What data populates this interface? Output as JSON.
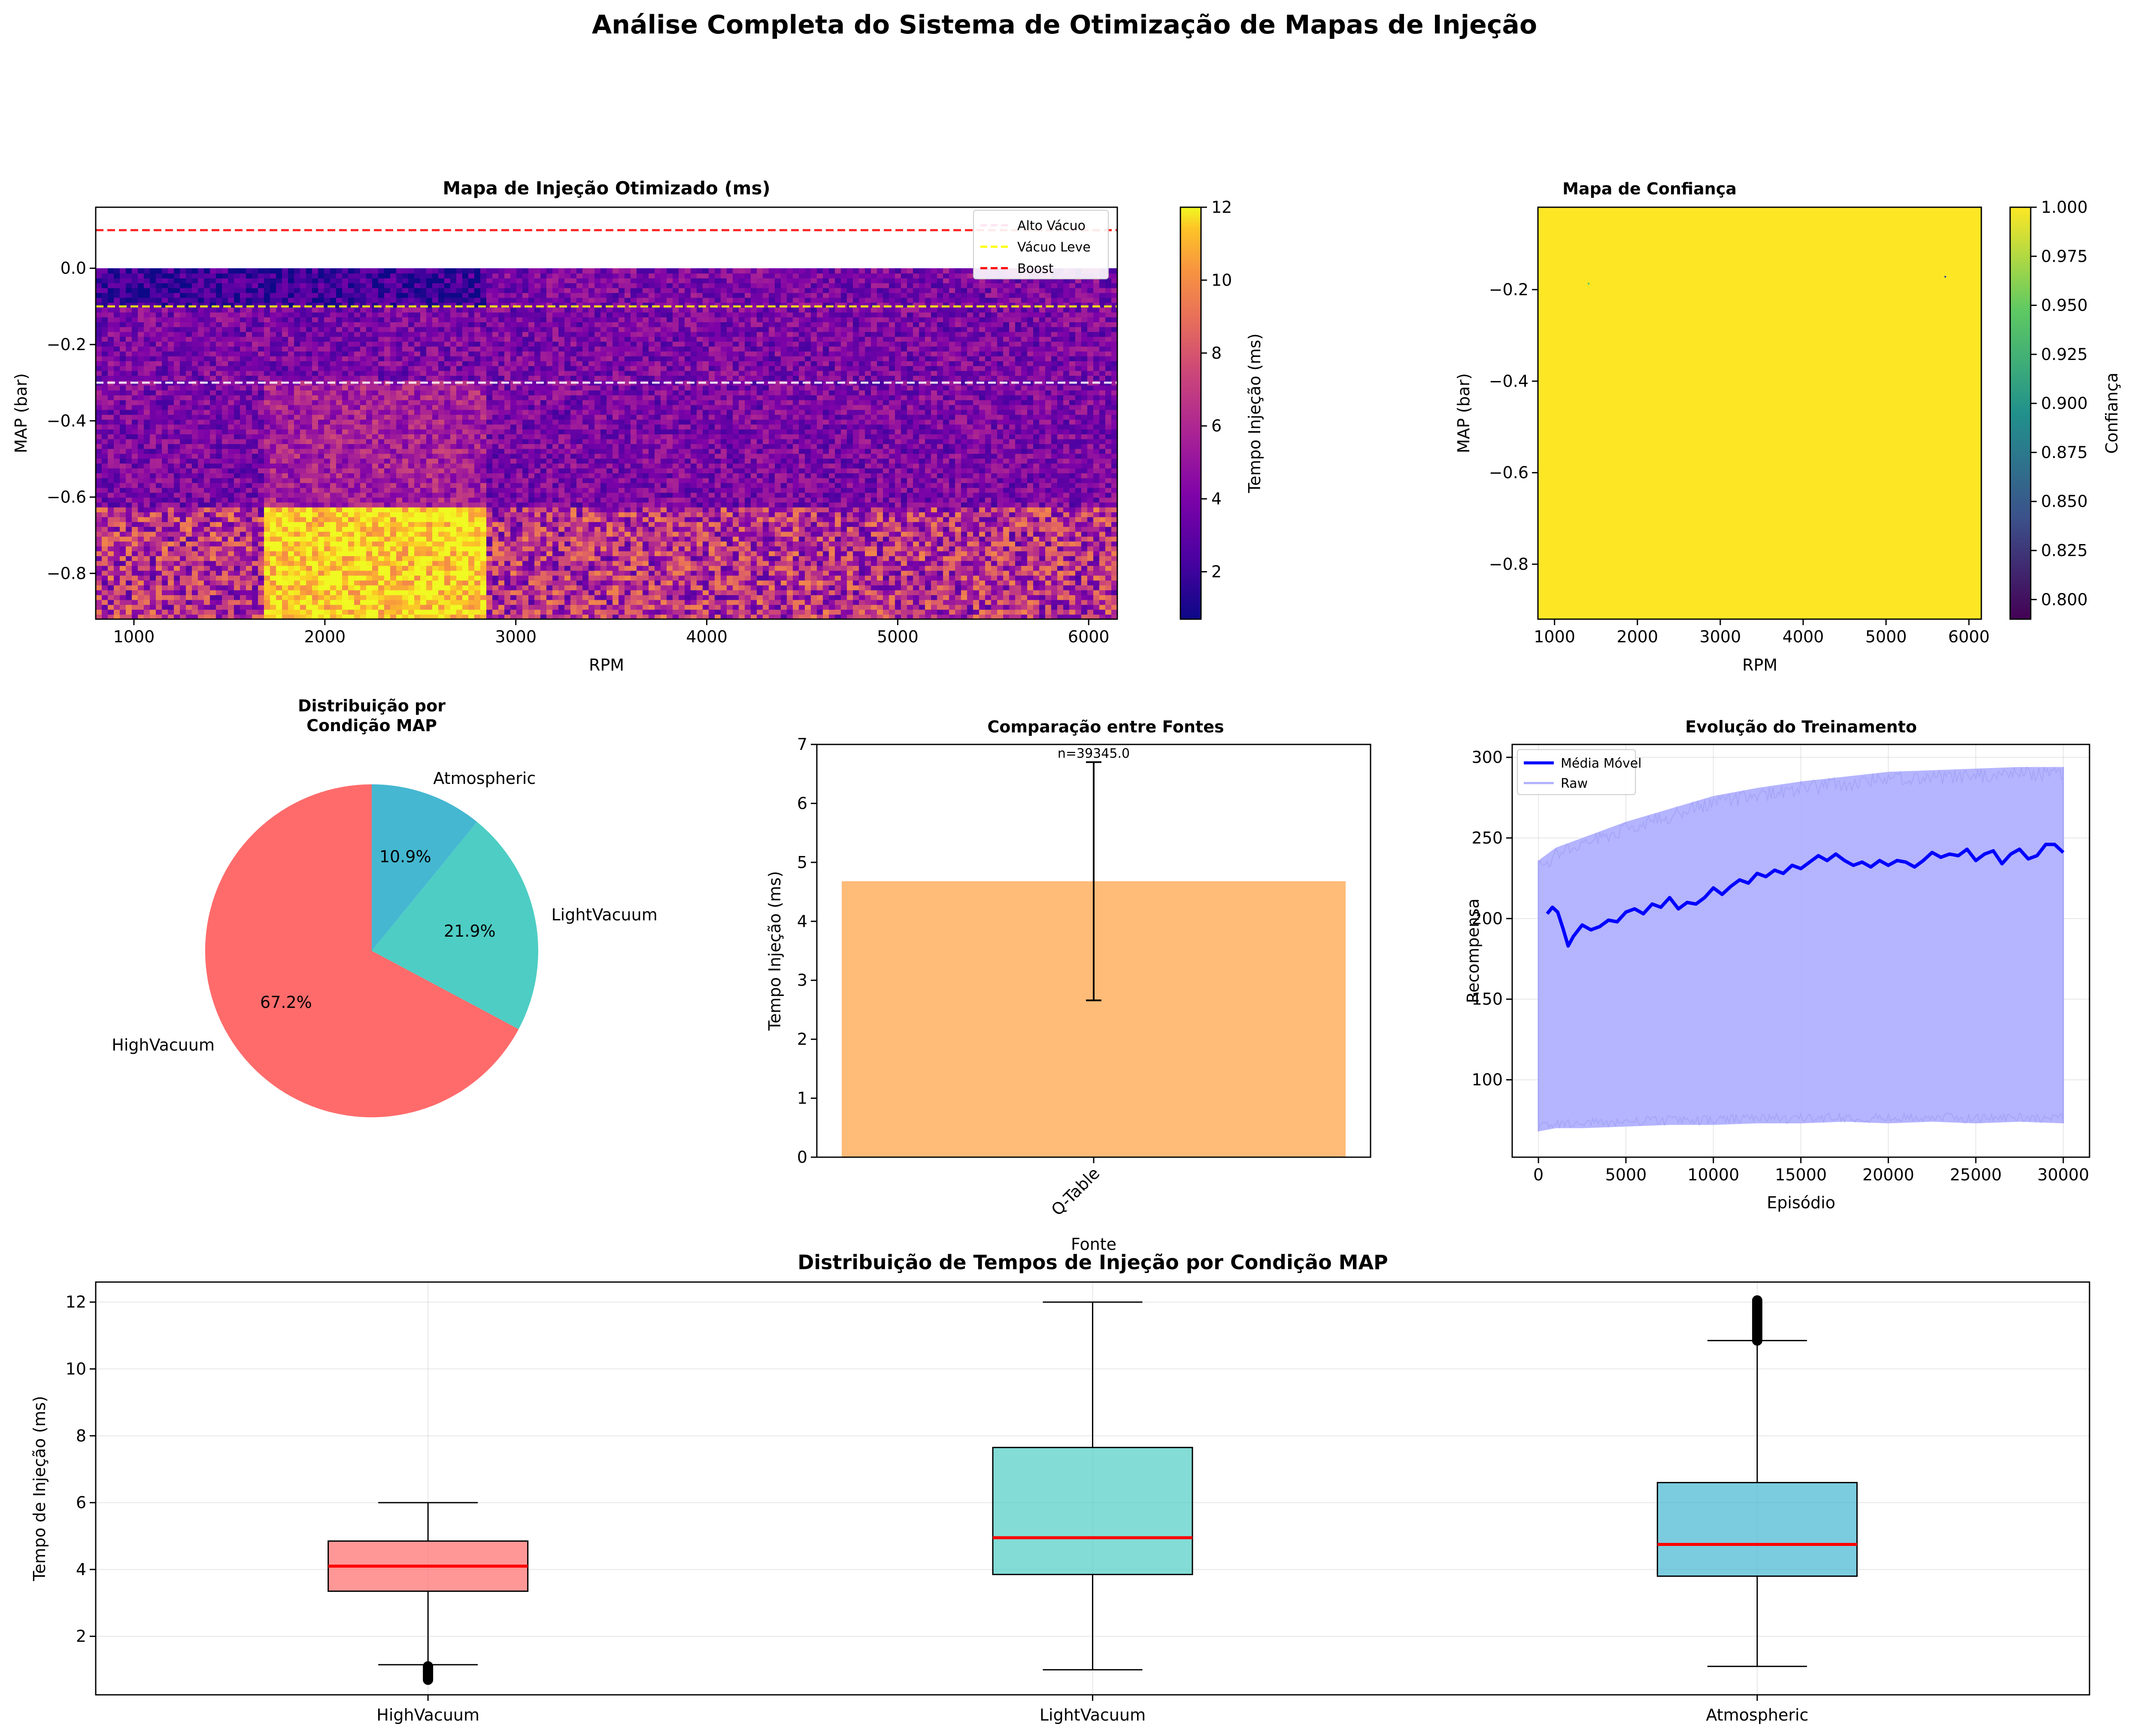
{
  "suptitle": "Análise Completa do Sistema de Otimização de Mapas de Injeção",
  "colors": {
    "pie": [
      "#ff6b6b",
      "#4ecdc4",
      "#45b7d1"
    ],
    "bar": "#ffbb78",
    "moving_avg": "#0000ff",
    "raw": "#b0b0ff",
    "median": "#ff0000",
    "alto_vacuo_line": "#ffffff",
    "vacuo_leve_line": "#ffff00",
    "boost_line": "#ff0000"
  },
  "chart_data": [
    {
      "id": "heatmap_injection",
      "type": "heatmap",
      "title": "Mapa de Injeção Otimizado (ms)",
      "xlabel": "RPM",
      "ylabel": "MAP (bar)",
      "xlim": [
        800,
        6150
      ],
      "ylim": [
        -0.92,
        0.16
      ],
      "xticks": [
        "1000",
        "2000",
        "3000",
        "4000",
        "5000",
        "6000"
      ],
      "yticks": [
        "0.0",
        "−0.2",
        "−0.4",
        "−0.6",
        "−0.8"
      ],
      "colormap": "plasma",
      "colorbar": {
        "label": "Tempo Injeção (ms)",
        "range": [
          0.7,
          12
        ],
        "ticks": [
          "2",
          "4",
          "6",
          "8",
          "10",
          "12"
        ]
      },
      "hlines": [
        {
          "name": "Alto Vácuo",
          "y": -0.3,
          "color": "#ffffff"
        },
        {
          "name": "Vácuo Leve",
          "y": -0.1,
          "color": "#ffff00"
        },
        {
          "name": "Boost",
          "y": 0.1,
          "color": "#ff0000"
        }
      ],
      "legend": [
        "Alto Vácuo",
        "Vácuo Leve",
        "Boost"
      ],
      "legend_loc": "top-right",
      "regions": [
        {
          "rpm": [
            800,
            6150
          ],
          "map": [
            -0.92,
            0.0
          ],
          "mean_ms": 3.5
        },
        {
          "rpm": [
            1670,
            2850
          ],
          "map": [
            -0.92,
            -0.62
          ],
          "mean_ms": 11.0
        },
        {
          "rpm": [
            800,
            6150
          ],
          "map": [
            -0.92,
            -0.62
          ],
          "mean_ms": 5.5
        },
        {
          "rpm": [
            1670,
            2850
          ],
          "map": [
            -0.62,
            -0.3
          ],
          "mean_ms": 4.8
        },
        {
          "rpm": [
            800,
            2850
          ],
          "map": [
            -0.1,
            0.0
          ],
          "mean_ms": 1.8
        }
      ]
    },
    {
      "id": "heatmap_confidence",
      "type": "heatmap",
      "title": "Mapa de Confiança",
      "xlabel": "RPM",
      "ylabel": "MAP (bar)",
      "xlim": [
        800,
        6150
      ],
      "ylim": [
        -0.92,
        -0.02
      ],
      "xticks": [
        "1000",
        "2000",
        "3000",
        "4000",
        "5000",
        "6000"
      ],
      "yticks": [
        "−0.2",
        "−0.4",
        "−0.6",
        "−0.8"
      ],
      "colormap": "viridis",
      "value": 1.0,
      "colorbar": {
        "label": "Confiança",
        "range": [
          0.79,
          1.0
        ],
        "ticks": [
          "0.800",
          "0.825",
          "0.850",
          "0.875",
          "0.900",
          "0.925",
          "0.950",
          "0.975",
          "1.000"
        ]
      }
    },
    {
      "id": "pie_map_condition",
      "type": "pie",
      "title": "Distribuição por\nCondição MAP",
      "labels": [
        "HighVacuum",
        "LightVacuum",
        "Atmospheric"
      ],
      "values": [
        67.2,
        21.9,
        10.9
      ],
      "pct_labels": [
        "67.2%",
        "21.9%",
        "10.9%"
      ]
    },
    {
      "id": "bar_sources",
      "type": "bar",
      "title": "Comparação entre Fontes",
      "xlabel": "Fonte",
      "ylabel": "Tempo Injeção (ms)",
      "categories": [
        "Q-Table"
      ],
      "values": [
        4.68
      ],
      "errors": [
        2.02
      ],
      "annotation": "n=39345.0",
      "ylim": [
        0,
        7
      ],
      "yticks": [
        "0",
        "1",
        "2",
        "3",
        "4",
        "5",
        "6",
        "7"
      ]
    },
    {
      "id": "line_training",
      "type": "line",
      "title": "Evolução do Treinamento",
      "xlabel": "Episódio",
      "ylabel": "Recompensa",
      "xlim": [
        -1500,
        31500
      ],
      "ylim": [
        52,
        308
      ],
      "xticks": [
        "0",
        "5000",
        "10000",
        "15000",
        "20000",
        "25000",
        "30000"
      ],
      "yticks": [
        "100",
        "150",
        "200",
        "250",
        "300"
      ],
      "grid": true,
      "legend_loc": "top-left",
      "series": [
        {
          "name": "Média Móvel",
          "x": [
            500,
            800,
            1100,
            1400,
            1700,
            2000,
            2500,
            3000,
            3500,
            4000,
            4500,
            5000,
            5500,
            6000,
            6500,
            7000,
            7500,
            8000,
            8500,
            9000,
            9500,
            10000,
            10500,
            11000,
            11500,
            12000,
            12500,
            13000,
            13500,
            14000,
            14500,
            15000,
            15500,
            16000,
            16500,
            17000,
            17500,
            18000,
            18500,
            19000,
            19500,
            20000,
            20500,
            21000,
            21500,
            22000,
            22500,
            23000,
            23500,
            24000,
            24500,
            25000,
            25500,
            26000,
            26500,
            27000,
            27500,
            28000,
            28500,
            29000,
            29500,
            30000
          ],
          "values": [
            203,
            207,
            204,
            194,
            183,
            189,
            196,
            193,
            195,
            199,
            198,
            204,
            206,
            203,
            209,
            207,
            213,
            206,
            210,
            209,
            213,
            219,
            215,
            220,
            224,
            222,
            228,
            226,
            230,
            228,
            233,
            231,
            235,
            239,
            236,
            240,
            236,
            233,
            235,
            232,
            236,
            233,
            236,
            235,
            232,
            236,
            241,
            238,
            240,
            239,
            243,
            236,
            240,
            242,
            234,
            240,
            243,
            237,
            239,
            246,
            246,
            241
          ]
        },
        {
          "name": "Raw",
          "x": [
            0,
            1000,
            2500,
            5000,
            7500,
            10000,
            12500,
            15000,
            17500,
            20000,
            22500,
            25000,
            27500,
            30000
          ],
          "upper": [
            236,
            244,
            250,
            260,
            268,
            276,
            281,
            285,
            288,
            291,
            292,
            293,
            294,
            294
          ],
          "lower": [
            68,
            70,
            70,
            71,
            72,
            72,
            73,
            73,
            74,
            73,
            74,
            73,
            74,
            73
          ]
        }
      ]
    },
    {
      "id": "box_injection",
      "type": "box",
      "title": "Distribuição de Tempos de Injeção por Condição MAP",
      "ylabel": "Tempo de Injeção (ms)",
      "categories": [
        "HighVacuum",
        "LightVacuum",
        "Atmospheric"
      ],
      "ylim": [
        0.25,
        12.6
      ],
      "yticks": [
        "2",
        "4",
        "6",
        "8",
        "10",
        "12"
      ],
      "grid": true,
      "boxes": [
        {
          "whisker_low": 1.15,
          "q1": 3.35,
          "median": 4.1,
          "q3": 4.85,
          "whisker_high": 6.0,
          "outliers_low": [
            0.7,
            1.1
          ],
          "outliers_high": []
        },
        {
          "whisker_low": 1.0,
          "q1": 3.85,
          "median": 4.95,
          "q3": 7.65,
          "whisker_high": 12.0,
          "outliers_low": [],
          "outliers_high": []
        },
        {
          "whisker_low": 1.1,
          "q1": 3.8,
          "median": 4.75,
          "q3": 6.6,
          "whisker_high": 10.85,
          "outliers_low": [],
          "outliers_high": [
            10.85,
            12.05
          ]
        }
      ]
    }
  ]
}
